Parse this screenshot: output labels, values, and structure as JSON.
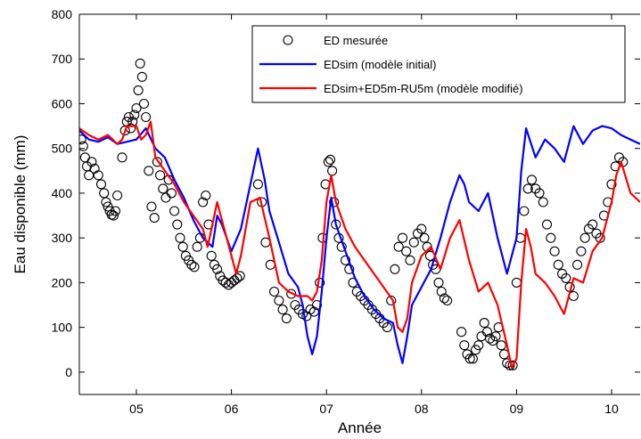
{
  "chart_data": {
    "type": "line",
    "xlabel": "Année",
    "ylabel": "Eau disponible (mm)",
    "xlim": [
      4.4,
      10.3
    ],
    "ylim": [
      -50,
      800
    ],
    "x_tick_values": [
      5,
      6,
      7,
      8,
      9,
      10
    ],
    "x_tick_labels": [
      "05",
      "06",
      "07",
      "08",
      "09",
      "10"
    ],
    "y_ticks": [
      0,
      100,
      200,
      300,
      400,
      500,
      600,
      700,
      800
    ],
    "grid": false,
    "legend_position": "top-right",
    "series": [
      {
        "name": "ED mesurée",
        "style": "markers",
        "marker": "circle-open",
        "color": "#000000",
        "x": [
          4.42,
          4.44,
          4.46,
          4.48,
          4.5,
          4.53,
          4.56,
          4.6,
          4.63,
          4.66,
          4.68,
          4.7,
          4.72,
          4.74,
          4.76,
          4.78,
          4.8,
          4.85,
          4.88,
          4.9,
          4.92,
          4.94,
          4.96,
          4.98,
          5.0,
          5.02,
          5.04,
          5.06,
          5.08,
          5.1,
          5.13,
          5.16,
          5.19,
          5.22,
          5.25,
          5.28,
          5.31,
          5.34,
          5.37,
          5.4,
          5.43,
          5.46,
          5.49,
          5.52,
          5.55,
          5.58,
          5.61,
          5.64,
          5.67,
          5.7,
          5.73,
          5.76,
          5.79,
          5.82,
          5.85,
          5.88,
          5.91,
          5.94,
          5.97,
          6.0,
          6.03,
          6.06,
          6.09,
          6.28,
          6.32,
          6.36,
          6.41,
          6.45,
          6.5,
          6.54,
          6.58,
          6.63,
          6.67,
          6.71,
          6.75,
          6.79,
          6.83,
          6.87,
          6.9,
          6.93,
          6.96,
          6.99,
          7.02,
          7.04,
          7.06,
          7.08,
          7.1,
          7.13,
          7.16,
          7.2,
          7.24,
          7.28,
          7.32,
          7.36,
          7.4,
          7.44,
          7.48,
          7.52,
          7.56,
          7.6,
          7.64,
          7.68,
          7.72,
          7.76,
          7.8,
          7.84,
          7.88,
          7.92,
          7.96,
          8.0,
          8.03,
          8.06,
          8.09,
          8.12,
          8.15,
          8.18,
          8.21,
          8.24,
          8.27,
          8.42,
          8.45,
          8.48,
          8.51,
          8.54,
          8.57,
          8.6,
          8.63,
          8.66,
          8.69,
          8.72,
          8.75,
          8.78,
          8.81,
          8.84,
          8.87,
          8.9,
          8.93,
          8.96,
          9.0,
          9.04,
          9.08,
          9.12,
          9.16,
          9.2,
          9.24,
          9.28,
          9.32,
          9.36,
          9.4,
          9.44,
          9.48,
          9.52,
          9.56,
          9.6,
          9.64,
          9.68,
          9.72,
          9.76,
          9.8,
          9.84,
          9.88,
          9.92,
          9.96,
          10.0,
          10.04,
          10.08,
          10.12
        ],
        "y": [
          520,
          505,
          480,
          460,
          440,
          470,
          455,
          440,
          420,
          400,
          380,
          370,
          360,
          352,
          350,
          360,
          395,
          480,
          540,
          560,
          570,
          545,
          560,
          575,
          590,
          630,
          690,
          660,
          600,
          570,
          450,
          370,
          345,
          470,
          440,
          410,
          390,
          430,
          400,
          360,
          330,
          300,
          280,
          260,
          250,
          240,
          235,
          280,
          300,
          380,
          395,
          330,
          260,
          240,
          230,
          215,
          205,
          200,
          195,
          200,
          205,
          210,
          215,
          420,
          380,
          290,
          240,
          180,
          160,
          140,
          120,
          175,
          150,
          140,
          130,
          125,
          140,
          135,
          150,
          200,
          300,
          420,
          470,
          475,
          450,
          380,
          330,
          300,
          280,
          250,
          230,
          200,
          180,
          170,
          160,
          150,
          140,
          130,
          120,
          110,
          100,
          160,
          230,
          280,
          300,
          270,
          250,
          290,
          310,
          320,
          300,
          280,
          260,
          240,
          230,
          200,
          180,
          165,
          160,
          90,
          60,
          40,
          30,
          30,
          50,
          60,
          80,
          110,
          90,
          75,
          70,
          80,
          100,
          60,
          40,
          20,
          15,
          15,
          200,
          300,
          360,
          410,
          430,
          410,
          400,
          380,
          330,
          300,
          270,
          240,
          220,
          210,
          190,
          170,
          240,
          270,
          300,
          320,
          330,
          310,
          300,
          350,
          380,
          420,
          460,
          480,
          470
        ]
      },
      {
        "name": "EDsim (modèle initial)",
        "style": "line",
        "color": "#0000ff",
        "x": [
          4.4,
          4.5,
          4.6,
          4.7,
          4.8,
          4.9,
          5.0,
          5.1,
          5.2,
          5.3,
          5.4,
          5.5,
          5.6,
          5.7,
          5.8,
          5.85,
          5.9,
          6.0,
          6.1,
          6.2,
          6.28,
          6.35,
          6.4,
          6.5,
          6.6,
          6.7,
          6.75,
          6.8,
          6.85,
          6.9,
          6.95,
          7.0,
          7.05,
          7.1,
          7.2,
          7.3,
          7.4,
          7.5,
          7.6,
          7.7,
          7.75,
          7.8,
          7.85,
          7.9,
          8.0,
          8.1,
          8.2,
          8.3,
          8.4,
          8.45,
          8.5,
          8.6,
          8.7,
          8.8,
          8.9,
          9.0,
          9.05,
          9.1,
          9.2,
          9.3,
          9.4,
          9.5,
          9.6,
          9.7,
          9.8,
          9.9,
          10.0,
          10.1,
          10.2,
          10.3
        ],
        "y": [
          540,
          520,
          515,
          525,
          510,
          515,
          520,
          545,
          500,
          480,
          430,
          390,
          340,
          300,
          280,
          350,
          330,
          270,
          320,
          420,
          500,
          430,
          360,
          290,
          220,
          190,
          150,
          80,
          40,
          80,
          180,
          300,
          390,
          330,
          270,
          210,
          170,
          140,
          120,
          110,
          60,
          20,
          80,
          150,
          190,
          230,
          300,
          380,
          440,
          420,
          380,
          360,
          400,
          300,
          220,
          300,
          450,
          545,
          480,
          520,
          500,
          470,
          550,
          510,
          540,
          550,
          545,
          530,
          520,
          510
        ]
      },
      {
        "name": "EDsim+ED5m-RU5m (modèle modifié)",
        "style": "line",
        "color": "#ff0000",
        "x": [
          4.4,
          4.5,
          4.6,
          4.7,
          4.8,
          4.85,
          4.9,
          5.0,
          5.05,
          5.1,
          5.15,
          5.2,
          5.3,
          5.4,
          5.5,
          5.6,
          5.7,
          5.75,
          5.8,
          5.85,
          5.9,
          6.0,
          6.05,
          6.1,
          6.2,
          6.3,
          6.4,
          6.5,
          6.6,
          6.7,
          6.8,
          6.85,
          6.9,
          6.95,
          7.0,
          7.05,
          7.1,
          7.2,
          7.3,
          7.4,
          7.5,
          7.6,
          7.7,
          7.75,
          7.8,
          7.85,
          7.9,
          8.0,
          8.1,
          8.2,
          8.3,
          8.4,
          8.5,
          8.6,
          8.7,
          8.8,
          8.9,
          8.95,
          9.0,
          9.05,
          9.1,
          9.15,
          9.2,
          9.3,
          9.4,
          9.5,
          9.6,
          9.7,
          9.8,
          9.9,
          10.0,
          10.05,
          10.1,
          10.2,
          10.3
        ],
        "y": [
          545,
          530,
          520,
          530,
          510,
          520,
          550,
          550,
          520,
          530,
          560,
          480,
          450,
          420,
          380,
          350,
          320,
          280,
          330,
          380,
          340,
          260,
          220,
          260,
          380,
          390,
          300,
          200,
          180,
          170,
          170,
          160,
          180,
          250,
          380,
          440,
          380,
          320,
          280,
          250,
          220,
          190,
          160,
          100,
          90,
          120,
          200,
          260,
          280,
          230,
          300,
          340,
          250,
          180,
          200,
          150,
          60,
          10,
          30,
          200,
          320,
          280,
          220,
          200,
          170,
          130,
          210,
          200,
          270,
          300,
          380,
          440,
          470,
          400,
          380
        ]
      }
    ]
  }
}
